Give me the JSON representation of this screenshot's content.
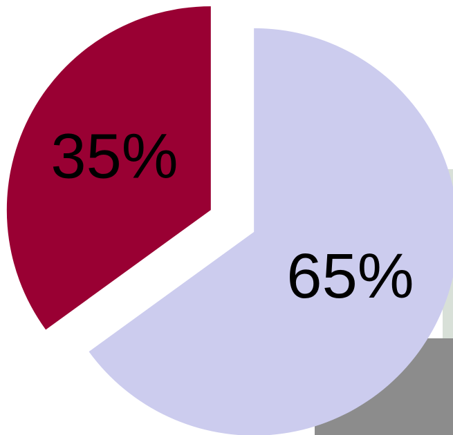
{
  "chart_data": {
    "type": "pie",
    "values": [
      65,
      35
    ],
    "value_labels": [
      "65%",
      "35%"
    ],
    "colors": [
      "#ccccee",
      "#990033"
    ]
  }
}
